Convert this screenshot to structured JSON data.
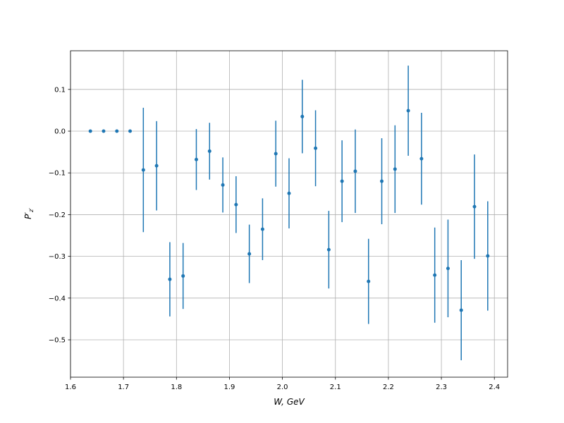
{
  "chart_data": {
    "type": "errorbar",
    "xlabel": "W, GeV",
    "ylabel": {
      "main": "P′",
      "sub": "z′"
    },
    "x": [
      1.6375,
      1.6625,
      1.6875,
      1.7125,
      1.7375,
      1.7625,
      1.7875,
      1.8125,
      1.8375,
      1.8625,
      1.8875,
      1.9125,
      1.9375,
      1.9625,
      1.9875,
      2.0125,
      2.0375,
      2.0625,
      2.0875,
      2.1125,
      2.1375,
      2.1625,
      2.1875,
      2.2125,
      2.2375,
      2.2625,
      2.2875,
      2.3125,
      2.3375,
      2.3625,
      2.3875
    ],
    "values": [
      0,
      0,
      0,
      0,
      -0.093,
      -0.083,
      -0.355,
      -0.347,
      -0.068,
      -0.048,
      -0.129,
      -0.176,
      -0.294,
      -0.235,
      -0.054,
      -0.149,
      0.035,
      -0.041,
      -0.284,
      -0.12,
      -0.096,
      -0.36,
      -0.12,
      -0.091,
      0.049,
      -0.066,
      -0.345,
      -0.329,
      -0.429,
      -0.181,
      -0.299
    ],
    "errors": [
      0,
      0,
      0,
      0,
      0.149,
      0.107,
      0.089,
      0.079,
      0.073,
      0.068,
      0.066,
      0.068,
      0.07,
      0.074,
      0.079,
      0.084,
      0.088,
      0.091,
      0.093,
      0.098,
      0.1,
      0.102,
      0.103,
      0.105,
      0.108,
      0.11,
      0.114,
      0.117,
      0.12,
      0.125,
      0.131
    ],
    "color": "#1f77b4",
    "xlim": [
      1.6,
      2.425
    ],
    "ylim": [
      -0.5895,
      0.1926
    ],
    "xticks": [
      1.6,
      1.7,
      1.8,
      1.9,
      {
        "value": 2.0,
        "label": "2.0"
      },
      2.1,
      2.2,
      2.3,
      2.4
    ],
    "yticks": [
      {
        "value": -0.5,
        "label": "−0.5"
      },
      {
        "value": -0.4,
        "label": "−0.4"
      },
      {
        "value": -0.3,
        "label": "−0.3"
      },
      {
        "value": -0.2,
        "label": "−0.2"
      },
      {
        "value": -0.1,
        "label": "−0.1"
      },
      {
        "value": 0.0,
        "label": "0.0"
      },
      0.1
    ],
    "grid": true
  }
}
